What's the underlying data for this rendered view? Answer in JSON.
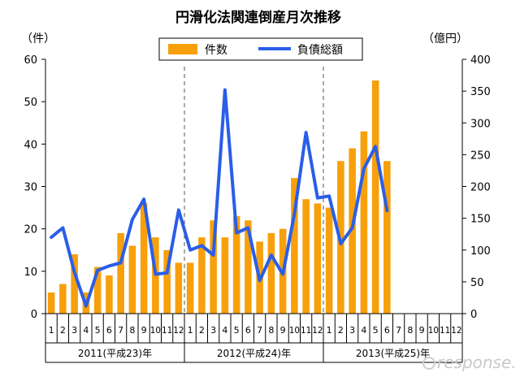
{
  "chart_data": {
    "type": "bar+line",
    "title": "円滑化法関連倒産月次推移",
    "y_left_label": "（件）",
    "y_right_label": "（億円）",
    "y_left_range": [
      0,
      60
    ],
    "y_left_ticks": [
      0,
      10,
      20,
      30,
      40,
      50,
      60
    ],
    "y_right_range": [
      0,
      400
    ],
    "y_right_ticks": [
      0,
      50,
      100,
      150,
      200,
      250,
      300,
      350,
      400
    ],
    "legend": [
      "件数",
      "負債総額"
    ],
    "months": [
      "1",
      "2",
      "3",
      "4",
      "5",
      "6",
      "7",
      "8",
      "9",
      "10",
      "11",
      "12",
      "1",
      "2",
      "3",
      "4",
      "5",
      "6",
      "7",
      "8",
      "9",
      "10",
      "11",
      "12",
      "1",
      "2",
      "3",
      "4",
      "5",
      "6",
      "7",
      "8",
      "9",
      "10",
      "11",
      "12"
    ],
    "year_labels": [
      "2011(平成23)年",
      "2012(平成24)年",
      "2013(平成25)年"
    ],
    "series": [
      {
        "name": "件数",
        "kind": "bar",
        "color": "#f7a00b",
        "values": [
          5,
          7,
          14,
          5,
          11,
          9,
          19,
          16,
          26,
          18,
          15,
          12,
          12,
          18,
          22,
          18,
          23,
          22,
          17,
          19,
          20,
          32,
          27,
          26,
          25,
          36,
          39,
          43,
          55,
          36
        ]
      },
      {
        "name": "負債総額",
        "kind": "line",
        "color": "#2a5ee8",
        "values": [
          120,
          135,
          65,
          12,
          68,
          75,
          80,
          148,
          180,
          62,
          64,
          163,
          100,
          107,
          92,
          352,
          127,
          135,
          52,
          92,
          62,
          157,
          285,
          182,
          185,
          110,
          135,
          228,
          263,
          162
        ]
      }
    ]
  },
  "watermark": "response."
}
